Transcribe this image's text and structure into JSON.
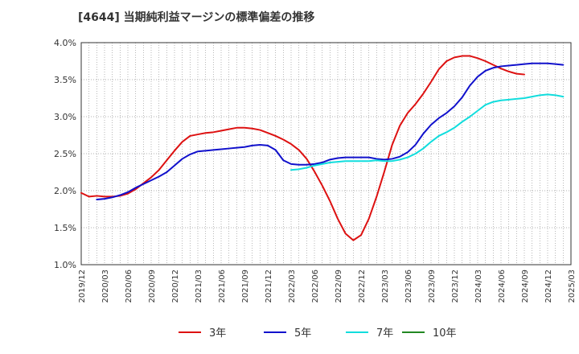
{
  "chart_data": {
    "type": "line",
    "title": "[4644]  当期純利益マージンの標準偏差の推移",
    "xlabel": "",
    "ylabel": "",
    "ylim": [
      1.0,
      4.0
    ],
    "y_ticks": [
      "1.0%",
      "1.5%",
      "2.0%",
      "2.5%",
      "3.0%",
      "3.5%",
      "4.0%"
    ],
    "y_tick_values": [
      1.0,
      1.5,
      2.0,
      2.5,
      3.0,
      3.5,
      4.0
    ],
    "x_ticks": [
      "2019/12",
      "2020/03",
      "2020/06",
      "2020/09",
      "2020/12",
      "2021/03",
      "2021/06",
      "2021/09",
      "2021/12",
      "2022/03",
      "2022/06",
      "2022/09",
      "2022/12",
      "2023/03",
      "2023/06",
      "2023/09",
      "2023/12",
      "2024/03",
      "2024/06",
      "2024/09",
      "2024/12",
      "2025/03"
    ],
    "grid": true,
    "legend_position": "bottom",
    "series": [
      {
        "name": "3年",
        "color": "#dd1111",
        "start_index": 0,
        "values": [
          1.97,
          1.92,
          1.93,
          1.92,
          1.92,
          1.93,
          1.96,
          2.02,
          2.1,
          2.18,
          2.28,
          2.41,
          2.54,
          2.66,
          2.74,
          2.76,
          2.78,
          2.79,
          2.81,
          2.83,
          2.85,
          2.85,
          2.84,
          2.82,
          2.78,
          2.74,
          2.69,
          2.63,
          2.55,
          2.43,
          2.26,
          2.07,
          1.86,
          1.62,
          1.42,
          1.33,
          1.4,
          1.62,
          1.92,
          2.26,
          2.62,
          2.88,
          3.05,
          3.17,
          3.31,
          3.47,
          3.64,
          3.75,
          3.8,
          3.82,
          3.82,
          3.79,
          3.75,
          3.7,
          3.65,
          3.61,
          3.58,
          3.57
        ]
      },
      {
        "name": "5年",
        "color": "#1111cc",
        "start_index": 2,
        "values": [
          1.88,
          1.89,
          1.91,
          1.94,
          1.98,
          2.04,
          2.09,
          2.14,
          2.19,
          2.25,
          2.34,
          2.43,
          2.49,
          2.53,
          2.54,
          2.55,
          2.56,
          2.57,
          2.58,
          2.59,
          2.61,
          2.62,
          2.61,
          2.55,
          2.41,
          2.36,
          2.35,
          2.35,
          2.36,
          2.38,
          2.42,
          2.44,
          2.45,
          2.45,
          2.45,
          2.45,
          2.43,
          2.42,
          2.43,
          2.46,
          2.52,
          2.62,
          2.77,
          2.89,
          2.98,
          3.05,
          3.14,
          3.26,
          3.42,
          3.54,
          3.62,
          3.66,
          3.68,
          3.69,
          3.7,
          3.71,
          3.72,
          3.72,
          3.72,
          3.71,
          3.7
        ]
      },
      {
        "name": "7年",
        "color": "#11dddd",
        "start_index": 27,
        "values": [
          2.28,
          2.29,
          2.31,
          2.34,
          2.36,
          2.38,
          2.39,
          2.4,
          2.4,
          2.4,
          2.4,
          2.41,
          2.4,
          2.4,
          2.42,
          2.45,
          2.5,
          2.57,
          2.66,
          2.74,
          2.79,
          2.85,
          2.93,
          3.0,
          3.08,
          3.16,
          3.2,
          3.22,
          3.23,
          3.24,
          3.25,
          3.27,
          3.29,
          3.3,
          3.29,
          3.27
        ]
      },
      {
        "name": "10年",
        "color": "#228822",
        "start_index": 0,
        "values": []
      }
    ]
  }
}
